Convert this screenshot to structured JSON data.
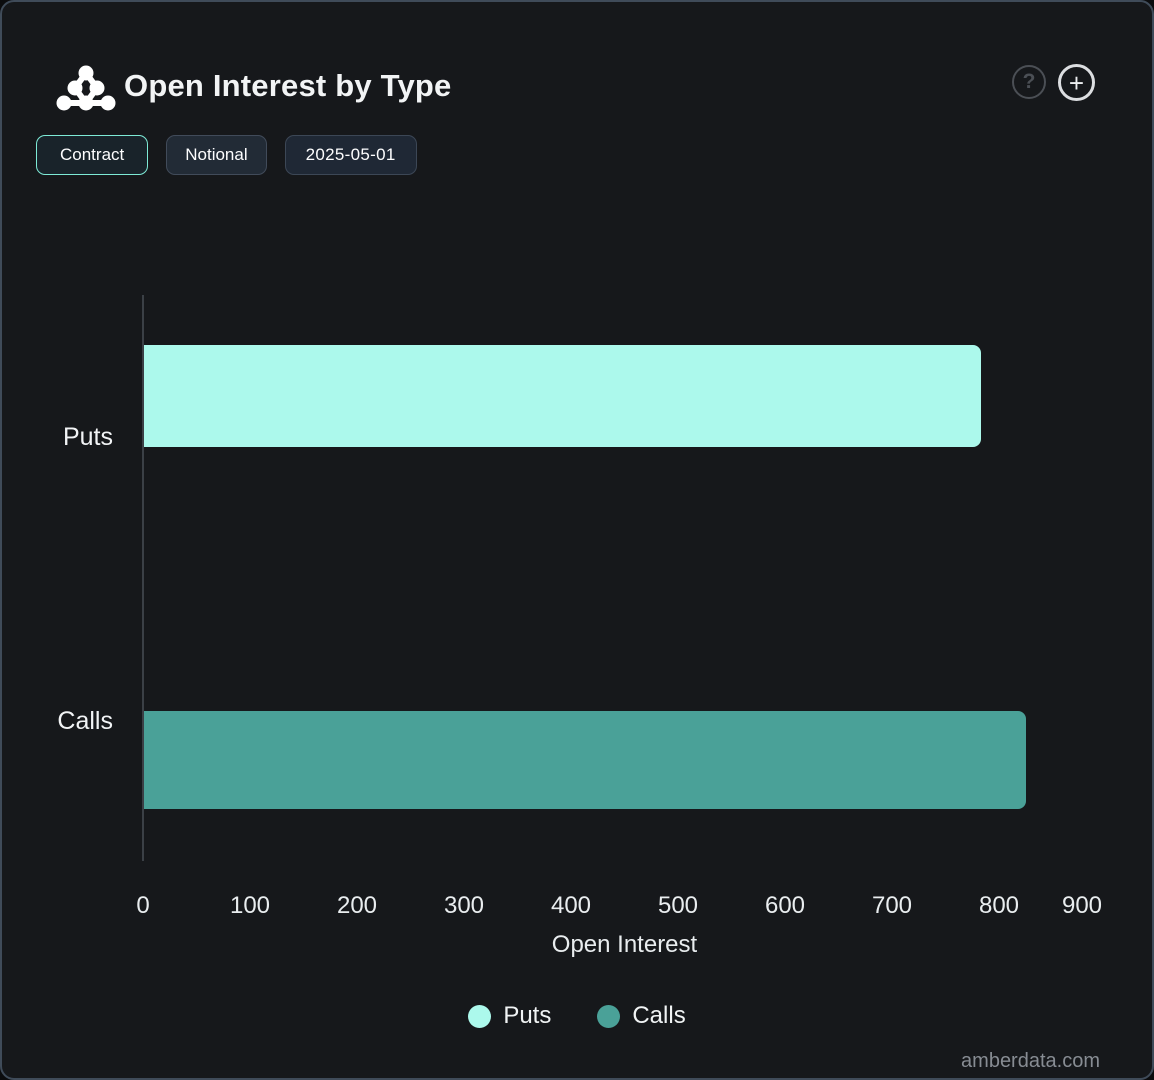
{
  "header": {
    "title": "Open Interest by Type",
    "help_icon": "?",
    "add_icon": "+"
  },
  "toolbar": {
    "buttons": [
      {
        "label": "Contract",
        "active": true
      },
      {
        "label": "Notional",
        "active": false
      },
      {
        "label": "2025-05-01",
        "active": false
      }
    ]
  },
  "chart_data": {
    "type": "bar",
    "orientation": "horizontal",
    "title": "Open Interest by Type",
    "categories": [
      "Puts",
      "Calls"
    ],
    "values": [
      782,
      824
    ],
    "colors": [
      "#acf9ec",
      "#4aa198"
    ],
    "xlabel": "Open Interest",
    "ylabel": "",
    "xlim": [
      0,
      900
    ],
    "x_ticks": [
      0,
      100,
      200,
      300,
      400,
      500,
      600,
      700,
      800,
      900
    ],
    "grid": false,
    "legend": [
      "Puts",
      "Calls"
    ],
    "legend_position": "bottom"
  },
  "footer": {
    "watermark": "amberdata.com"
  },
  "colors": {
    "background": "#16181b",
    "card_border": "#3f4b59",
    "accent": "#7eead6",
    "axis_line": "#3b4046"
  }
}
